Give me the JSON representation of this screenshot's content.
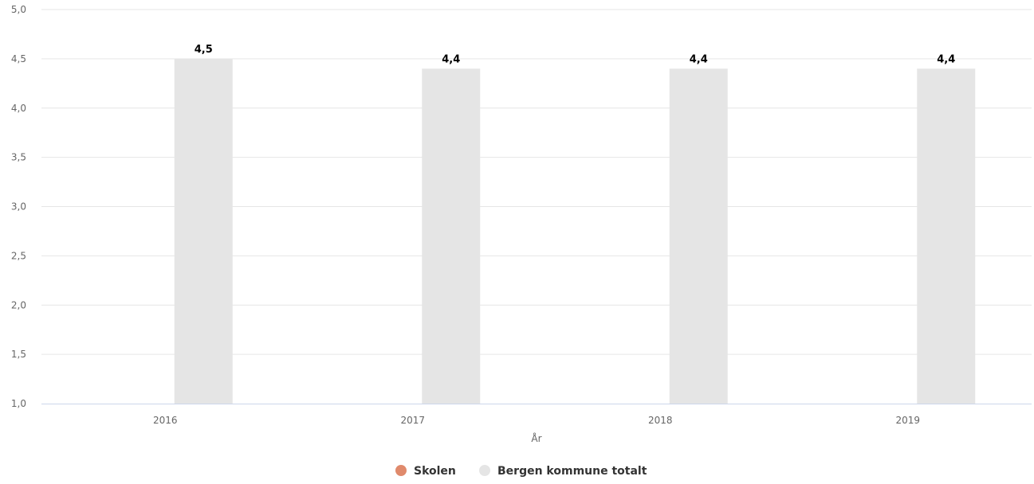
{
  "chart_data": {
    "type": "bar",
    "categories": [
      "2016",
      "2017",
      "2018",
      "2019"
    ],
    "series": [
      {
        "name": "Skolen",
        "color": "#e08a6c",
        "values": [
          null,
          null,
          null,
          null
        ]
      },
      {
        "name": "Bergen kommune totalt",
        "color": "#e5e5e5",
        "values": [
          4.5,
          4.4,
          4.4,
          4.4
        ]
      }
    ],
    "data_labels": [
      "4,5",
      "4,4",
      "4,4",
      "4,4"
    ],
    "xlabel": "År",
    "ylabel": "",
    "ylim": [
      1.0,
      5.0
    ],
    "yticks": [
      1.0,
      1.5,
      2.0,
      2.5,
      3.0,
      3.5,
      4.0,
      4.5,
      5.0
    ],
    "ytick_labels": [
      "1,0",
      "1,5",
      "2,0",
      "2,5",
      "3,0",
      "3,5",
      "4,0",
      "4,5",
      "5,0"
    ],
    "grid": true,
    "legend_position": "bottom-center"
  }
}
